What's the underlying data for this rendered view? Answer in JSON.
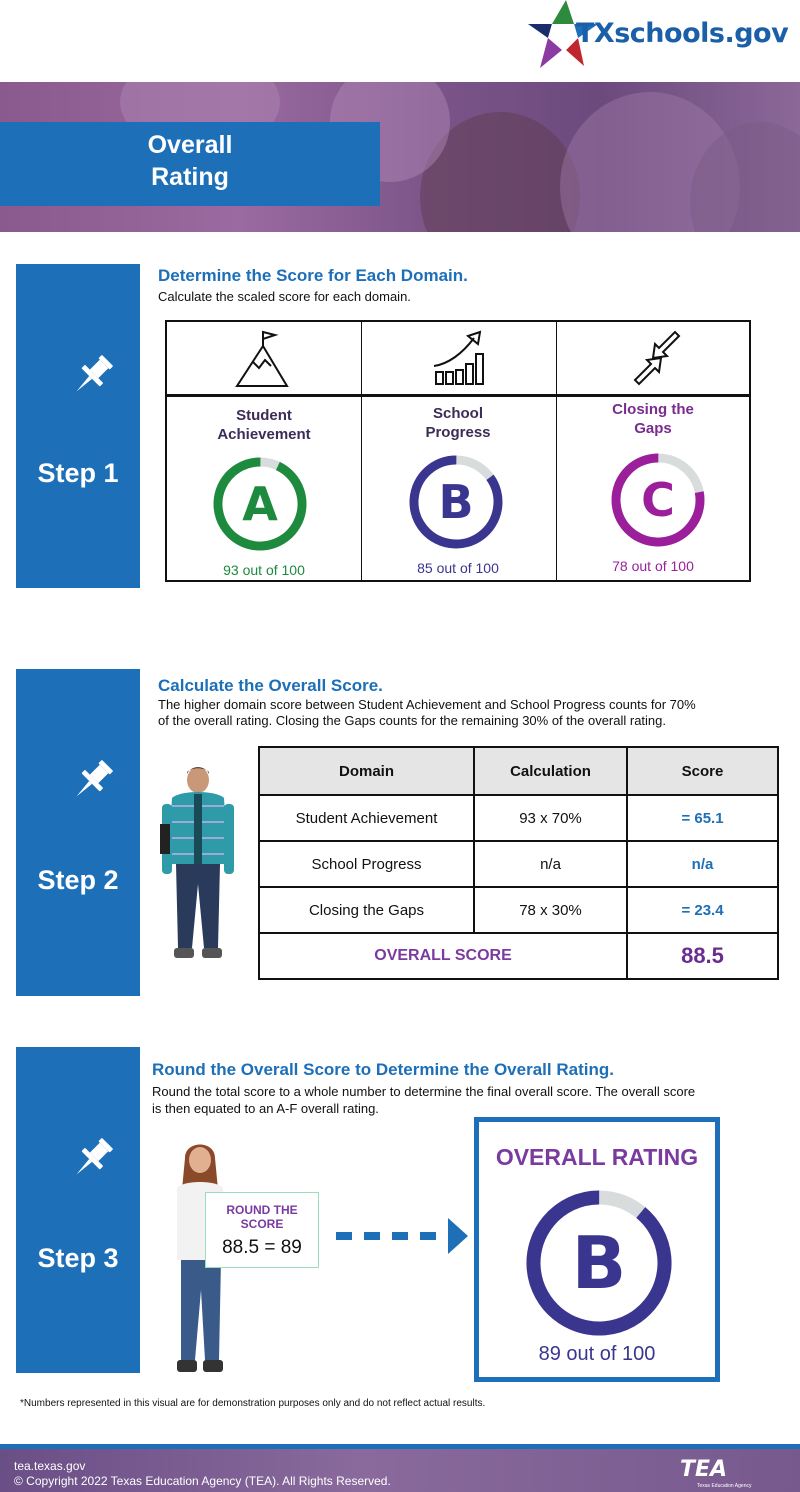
{
  "header": {
    "logo_text": "TXschools.gov",
    "banner_title_line1": "Overall",
    "banner_title_line2": "Rating"
  },
  "colors": {
    "brand_blue": "#1d6fb8",
    "achievement_green": "#1e8a3e",
    "progress_indigo": "#3a3690",
    "gaps_purple": "#9b1f9b",
    "overall_purple": "#7a3aa0"
  },
  "step1": {
    "label": "Step 1",
    "title": "Determine the Score for Each Domain.",
    "description": "Calculate the scaled score for each domain.",
    "domains": [
      {
        "icon": "mountain-flag-icon",
        "name_line1": "Student",
        "name_line2": "Achievement",
        "grade": "A",
        "score_text": "93 out of 100",
        "score": 93,
        "color": "#1e8a3e"
      },
      {
        "icon": "growth-chart-icon",
        "name_line1": "School",
        "name_line2": "Progress",
        "grade": "B",
        "score_text": "85 out of 100",
        "score": 85,
        "color": "#3a3690"
      },
      {
        "icon": "closing-arrows-icon",
        "name_line1": "Closing the",
        "name_line2": "Gaps",
        "grade": "C",
        "score_text": "78 out of 100",
        "score": 78,
        "color": "#9b1f9b"
      }
    ]
  },
  "step2": {
    "label": "Step 2",
    "title": "Calculate the Overall Score.",
    "description_line1": "The higher domain score between Student Achievement and School Progress counts for 70%",
    "description_line2": "of the overall rating. Closing the Gaps counts for the remaining 30% of the overall rating.",
    "table": {
      "headers": [
        "Domain",
        "Calculation",
        "Score"
      ],
      "rows": [
        [
          "Student Achievement",
          "93 x 70%",
          "=  65.1"
        ],
        [
          "School Progress",
          "n/a",
          "n/a"
        ],
        [
          "Closing the Gaps",
          "78 x 30%",
          "=  23.4"
        ]
      ],
      "overall_label": "OVERALL SCORE",
      "overall_value": "88.5"
    }
  },
  "step3": {
    "label": "Step 3",
    "title": "Round the Overall Score to Determine the Overall Rating.",
    "description_line1": "Round the total score to a whole number to determine the final overall score. The overall score",
    "description_line2": "is then equated to an A-F overall rating.",
    "card_title_line1": "ROUND THE",
    "card_title_line2": "SCORE",
    "card_equation": "88.5 = 89",
    "overall_title": "OVERALL RATING",
    "overall_grade": "B",
    "overall_score_text": "89 out of 100",
    "overall_score": 89
  },
  "footnote": "*Numbers represented in this visual are for demonstration purposes only and do not reflect actual results.",
  "footer": {
    "url": "tea.texas.gov",
    "copyright": "© Copyright 2022 Texas Education Agency (TEA). All Rights Reserved.",
    "tea_logo": "TEA",
    "tea_subtitle": "Texas Education Agency"
  }
}
